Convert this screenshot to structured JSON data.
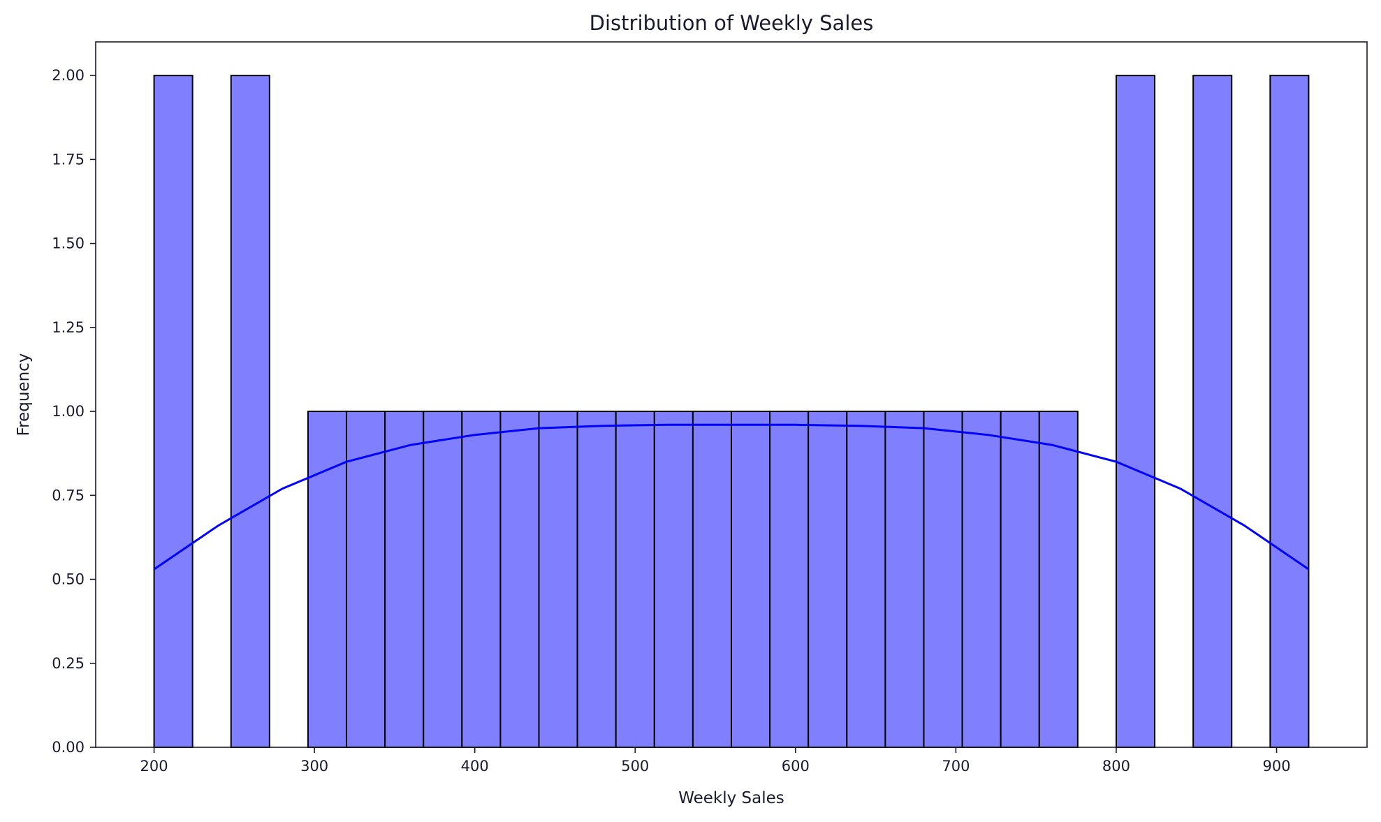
{
  "chart_data": {
    "type": "bar",
    "title": "Distribution of Weekly Sales",
    "xlabel": "Weekly Sales",
    "ylabel": "Frequency",
    "xlim": [
      163.6,
      956.4
    ],
    "ylim": [
      0,
      2.1
    ],
    "xticks": [
      200,
      300,
      400,
      500,
      600,
      700,
      800,
      900
    ],
    "yticks": [
      0,
      0.25,
      0.5,
      0.75,
      1.0,
      1.25,
      1.5,
      1.75,
      2.0
    ],
    "ytick_labels": [
      "0.00",
      "0.25",
      "0.50",
      "0.75",
      "1.00",
      "1.25",
      "1.50",
      "1.75",
      "2.00"
    ],
    "bin_start": 200,
    "bin_width": 24,
    "counts": [
      2,
      0,
      2,
      0,
      1,
      1,
      1,
      1,
      1,
      1,
      1,
      1,
      1,
      1,
      1,
      1,
      1,
      1,
      1,
      1,
      1,
      1,
      1,
      1,
      0,
      2,
      0,
      2,
      0,
      2
    ],
    "kde": {
      "x": [
        200,
        240,
        280,
        320,
        360,
        400,
        440,
        480,
        520,
        560,
        600,
        640,
        680,
        720,
        760,
        800,
        840,
        880,
        920
      ],
      "y": [
        0.53,
        0.66,
        0.77,
        0.85,
        0.9,
        0.93,
        0.95,
        0.957,
        0.96,
        0.96,
        0.96,
        0.957,
        0.95,
        0.93,
        0.9,
        0.85,
        0.77,
        0.66,
        0.53
      ]
    },
    "colors": {
      "bar_fill": "#8080ff",
      "bar_edge": "#000000",
      "kde_line": "#0000ff",
      "axes": "#1a1a2e"
    },
    "grid": false,
    "legend": "none"
  }
}
